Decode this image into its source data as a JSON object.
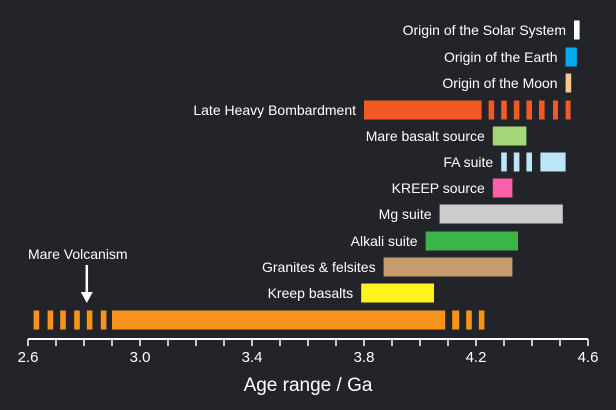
{
  "chart_data": {
    "type": "bar",
    "orientation": "horizontal-range",
    "title": "",
    "xlabel": "Age range / Ga",
    "ylabel": "",
    "xlim": [
      2.6,
      4.6
    ],
    "xticks": [
      "2.6",
      "3.0",
      "3.4",
      "3.8",
      "4.2",
      "4.6"
    ],
    "minor_tick_step": 0.1,
    "grid": false,
    "background": "#232429",
    "series": [
      {
        "name": "Origin of the Solar System",
        "color": "#ffffff",
        "ranges": [
          [
            4.55,
            4.57
          ]
        ]
      },
      {
        "name": "Origin of the Earth",
        "color": "#00aeef",
        "ranges": [
          [
            4.52,
            4.56
          ]
        ]
      },
      {
        "name": "Origin of the Moon",
        "color": "#fdc68a",
        "ranges": [
          [
            4.52,
            4.54
          ]
        ]
      },
      {
        "name": "Late Heavy Bombardment",
        "color": "#f15a24",
        "ranges": [
          [
            3.8,
            4.22
          ]
        ],
        "uncertain_ranges": [
          [
            4.245,
            4.265
          ],
          [
            4.29,
            4.31
          ],
          [
            4.335,
            4.355
          ],
          [
            4.38,
            4.4
          ],
          [
            4.425,
            4.445
          ],
          [
            4.475,
            4.49
          ],
          [
            4.52,
            4.535
          ]
        ]
      },
      {
        "name": "Mare basalt source",
        "color": "#a5d67a",
        "ranges": [
          [
            4.26,
            4.38
          ]
        ]
      },
      {
        "name": "FA suite",
        "color": "#bde5f8",
        "ranges": [
          [
            4.43,
            4.52
          ]
        ],
        "uncertain_ranges": [
          [
            4.29,
            4.31
          ],
          [
            4.335,
            4.355
          ],
          [
            4.38,
            4.4
          ]
        ]
      },
      {
        "name": "KREEP source",
        "color": "#ff5fa8",
        "ranges": [
          [
            4.26,
            4.33
          ]
        ]
      },
      {
        "name": "Mg suite",
        "color": "#cccccc",
        "ranges": [
          [
            4.07,
            4.51
          ]
        ]
      },
      {
        "name": "Alkali suite",
        "color": "#39b54a",
        "ranges": [
          [
            4.02,
            4.35
          ]
        ]
      },
      {
        "name": "Granites & felsites",
        "color": "#c69c6d",
        "ranges": [
          [
            3.87,
            4.33
          ]
        ]
      },
      {
        "name": "Kreep basalts",
        "color": "#fff21e",
        "ranges": [
          [
            3.79,
            4.05
          ]
        ]
      },
      {
        "name": "Mare Volcanism",
        "color": "#f7941d",
        "ranges": [
          [
            2.9,
            4.09
          ]
        ],
        "uncertain_ranges": [
          [
            2.62,
            2.64
          ],
          [
            2.67,
            2.69
          ],
          [
            2.715,
            2.735
          ],
          [
            2.765,
            2.785
          ],
          [
            2.81,
            2.83
          ],
          [
            2.86,
            2.88
          ],
          [
            4.115,
            4.14
          ],
          [
            4.165,
            4.185
          ],
          [
            4.21,
            4.23
          ]
        ],
        "label_position": "above",
        "arrow_at": 2.81
      }
    ]
  }
}
